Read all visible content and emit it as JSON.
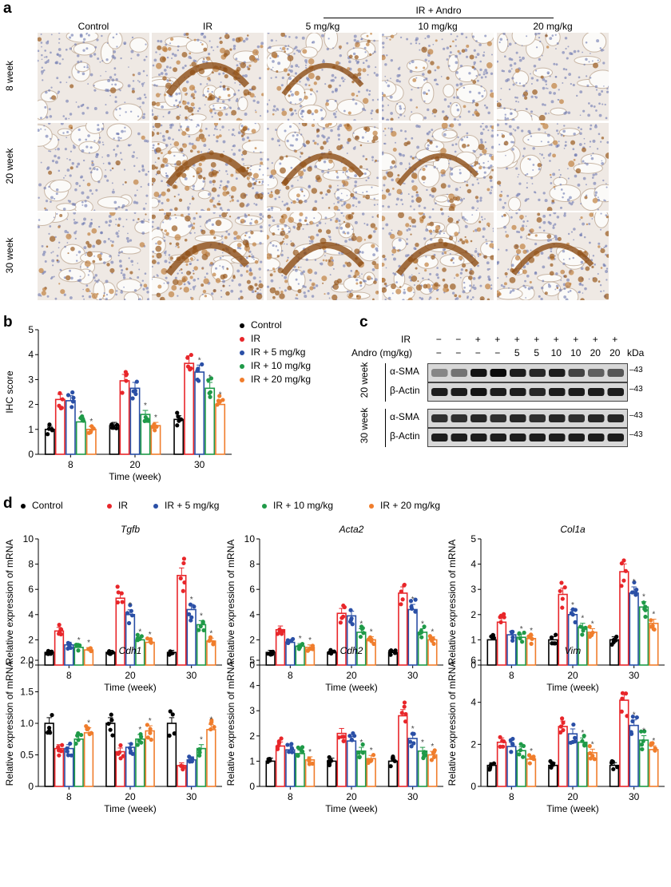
{
  "panel_labels": {
    "a": "a",
    "b": "b",
    "c": "c",
    "d": "d"
  },
  "panel_a": {
    "group_label": "IR + Andro",
    "columns": [
      "Control",
      "IR",
      "5 mg/kg",
      "10 mg/kg",
      "20 mg/kg"
    ],
    "rows": [
      "8 week",
      "20 week",
      "30 week"
    ]
  },
  "legend_b": [
    "Control",
    "IR",
    "IR + 5 mg/kg",
    "IR + 10 mg/kg",
    "IR + 20 mg/kg"
  ],
  "legend_d": [
    "Control",
    "IR",
    "IR + 5 mg/kg",
    "IR + 10 mg/kg",
    "IR + 20 mg/kg"
  ],
  "colors": {
    "Control": "#000000",
    "IR": "#e8262a",
    "IR + 5 mg/kg": "#2a4fa6",
    "IR + 10 mg/kg": "#1f9a48",
    "IR + 20 mg/kg": "#f07d2c"
  },
  "blot": {
    "ir_label": "IR",
    "andro_label": "Andro (mg/kg)",
    "ir_values": [
      "−",
      "−",
      "+",
      "+",
      "+",
      "+",
      "+",
      "+",
      "+",
      "+"
    ],
    "andro_values": [
      "−",
      "−",
      "−",
      "−",
      "5",
      "5",
      "10",
      "10",
      "20",
      "20"
    ],
    "kda_label": "kDa",
    "groups": [
      {
        "week": "20 week",
        "bands": [
          {
            "name": "α-SMA",
            "kda": "43"
          },
          {
            "name": "β-Actin",
            "kda": "43"
          }
        ]
      },
      {
        "week": "30 week",
        "bands": [
          {
            "name": "α-SMA",
            "kda": "43"
          },
          {
            "name": "β-Actin",
            "kda": "43"
          }
        ]
      }
    ]
  },
  "chart_data": [
    {
      "type": "bar",
      "panel": "b",
      "title": "",
      "xlabel": "Time (week)",
      "ylabel": "IHC score",
      "categories": [
        "8",
        "20",
        "30"
      ],
      "ylim": [
        0,
        5
      ],
      "yticks": [
        0,
        1,
        2,
        3,
        4,
        5
      ],
      "tick_labels": [
        "0",
        "1",
        "2",
        "3",
        "4",
        "5"
      ],
      "series": [
        {
          "name": "Control",
          "values": [
            1.0,
            1.15,
            1.4
          ],
          "sig": [
            "",
            "",
            ""
          ]
        },
        {
          "name": "IR",
          "values": [
            2.2,
            2.95,
            3.65
          ],
          "sig": [
            "",
            "",
            ""
          ]
        },
        {
          "name": "IR + 5 mg/kg",
          "values": [
            2.15,
            2.65,
            3.3
          ],
          "sig": [
            "",
            "",
            "*"
          ]
        },
        {
          "name": "IR + 10 mg/kg",
          "values": [
            1.3,
            1.6,
            2.65
          ],
          "sig": [
            "*",
            "*",
            "*"
          ]
        },
        {
          "name": "IR + 20 mg/kg",
          "values": [
            1.0,
            1.15,
            2.0
          ],
          "sig": [
            "*",
            "*",
            "*"
          ]
        }
      ]
    },
    {
      "type": "bar",
      "panel": "d",
      "title": "Tgfb",
      "xlabel": "Time (week)",
      "ylabel": "Relative expression of mRNA",
      "categories": [
        "8",
        "20",
        "30"
      ],
      "ylim": [
        0,
        10
      ],
      "yticks": [
        0,
        2,
        4,
        6,
        8,
        10
      ],
      "tick_labels": [
        "0",
        "2",
        "4",
        "6",
        "8",
        "10"
      ],
      "series": [
        {
          "name": "Control",
          "values": [
            1.0,
            1.0,
            1.0
          ],
          "sig": [
            "",
            "",
            ""
          ]
        },
        {
          "name": "IR",
          "values": [
            2.7,
            5.3,
            7.1
          ],
          "sig": [
            "",
            "",
            ""
          ]
        },
        {
          "name": "IR + 5 mg/kg",
          "values": [
            1.6,
            4.0,
            4.4
          ],
          "sig": [
            "",
            "*",
            "*"
          ]
        },
        {
          "name": "IR + 10 mg/kg",
          "values": [
            1.4,
            2.0,
            3.2
          ],
          "sig": [
            "*",
            "*",
            "*"
          ]
        },
        {
          "name": "IR + 20 mg/kg",
          "values": [
            1.2,
            1.8,
            1.9
          ],
          "sig": [
            "*",
            "*",
            "*"
          ]
        }
      ]
    },
    {
      "type": "bar",
      "panel": "d",
      "title": "Acta2",
      "xlabel": "Time (week)",
      "ylabel": "Relative expression of mRNA",
      "categories": [
        "8",
        "20",
        "30"
      ],
      "ylim": [
        0,
        10
      ],
      "yticks": [
        0,
        2,
        4,
        6,
        8,
        10
      ],
      "tick_labels": [
        "0",
        "2",
        "4",
        "6",
        "8",
        "10"
      ],
      "series": [
        {
          "name": "Control",
          "values": [
            1.0,
            1.0,
            1.0
          ],
          "sig": [
            "",
            "",
            ""
          ]
        },
        {
          "name": "IR",
          "values": [
            2.8,
            4.1,
            5.7
          ],
          "sig": [
            "",
            "",
            ""
          ]
        },
        {
          "name": "IR + 5 mg/kg",
          "values": [
            1.8,
            3.9,
            4.4
          ],
          "sig": [
            "",
            "",
            "*"
          ]
        },
        {
          "name": "IR + 10 mg/kg",
          "values": [
            1.5,
            2.6,
            2.6
          ],
          "sig": [
            "*",
            "*",
            "*"
          ]
        },
        {
          "name": "IR + 20 mg/kg",
          "values": [
            1.4,
            2.0,
            2.0
          ],
          "sig": [
            "*",
            "*",
            "*"
          ]
        }
      ]
    },
    {
      "type": "bar",
      "panel": "d",
      "title": "Col1a",
      "xlabel": "Time (week)",
      "ylabel": "Relative expression of mRNA",
      "categories": [
        "8",
        "20",
        "30"
      ],
      "ylim": [
        0,
        5
      ],
      "yticks": [
        0,
        1,
        2,
        3,
        4,
        5
      ],
      "tick_labels": [
        "0",
        "1",
        "2",
        "3",
        "4",
        "5"
      ],
      "series": [
        {
          "name": "Control",
          "values": [
            1.0,
            1.0,
            1.0
          ],
          "sig": [
            "",
            "",
            ""
          ]
        },
        {
          "name": "IR",
          "values": [
            1.7,
            2.8,
            3.7
          ],
          "sig": [
            "",
            "",
            ""
          ]
        },
        {
          "name": "IR + 5 mg/kg",
          "values": [
            1.2,
            2.0,
            2.85
          ],
          "sig": [
            "",
            "*",
            "*"
          ]
        },
        {
          "name": "IR + 10 mg/kg",
          "values": [
            1.1,
            1.5,
            2.3
          ],
          "sig": [
            "*",
            "*",
            "*"
          ]
        },
        {
          "name": "IR + 20 mg/kg",
          "values": [
            1.05,
            1.3,
            1.65
          ],
          "sig": [
            "*",
            "*",
            "*"
          ]
        }
      ]
    },
    {
      "type": "bar",
      "panel": "d",
      "title": "Cdh1",
      "xlabel": "Time (week)",
      "ylabel": "Relative expression of mRNA",
      "categories": [
        "8",
        "20",
        "30"
      ],
      "ylim": [
        0,
        2.0
      ],
      "yticks": [
        0,
        0.5,
        1.0,
        1.5,
        2.0
      ],
      "tick_labels": [
        "0",
        "0.5",
        "1.0",
        "1.5",
        "2.0"
      ],
      "series": [
        {
          "name": "Control",
          "values": [
            1.0,
            1.0,
            1.0
          ],
          "sig": [
            "",
            "",
            ""
          ]
        },
        {
          "name": "IR",
          "values": [
            0.6,
            0.55,
            0.33
          ],
          "sig": [
            "",
            "",
            ""
          ]
        },
        {
          "name": "IR + 5 mg/kg",
          "values": [
            0.6,
            0.62,
            0.42
          ],
          "sig": [
            "",
            "",
            ""
          ]
        },
        {
          "name": "IR + 10 mg/kg",
          "values": [
            0.75,
            0.75,
            0.6
          ],
          "sig": [
            "",
            "*",
            "*"
          ]
        },
        {
          "name": "IR + 20 mg/kg",
          "values": [
            0.85,
            0.88,
            0.9
          ],
          "sig": [
            "*",
            "*",
            "*"
          ]
        }
      ]
    },
    {
      "type": "bar",
      "panel": "d",
      "title": "Cdh2",
      "xlabel": "Time (week)",
      "ylabel": "Relative expression of mRNA",
      "categories": [
        "8",
        "20",
        "30"
      ],
      "ylim": [
        0,
        5
      ],
      "yticks": [
        0,
        1,
        2,
        3,
        4,
        5
      ],
      "tick_labels": [
        "0",
        "1",
        "2",
        "3",
        "4",
        "5"
      ],
      "series": [
        {
          "name": "Control",
          "values": [
            1.0,
            1.0,
            1.0
          ],
          "sig": [
            "",
            "",
            ""
          ]
        },
        {
          "name": "IR",
          "values": [
            1.6,
            2.1,
            2.8
          ],
          "sig": [
            "",
            "",
            ""
          ]
        },
        {
          "name": "IR + 5 mg/kg",
          "values": [
            1.45,
            1.8,
            1.9
          ],
          "sig": [
            "",
            "",
            "*"
          ]
        },
        {
          "name": "IR + 10 mg/kg",
          "values": [
            1.3,
            1.4,
            1.4
          ],
          "sig": [
            "",
            "*",
            "*"
          ]
        },
        {
          "name": "IR + 20 mg/kg",
          "values": [
            1.05,
            1.1,
            1.25
          ],
          "sig": [
            "*",
            "*",
            "*"
          ]
        }
      ]
    },
    {
      "type": "bar",
      "panel": "d",
      "title": "Vim",
      "xlabel": "Time (week)",
      "ylabel": "Relative expression of mRNA",
      "categories": [
        "8",
        "20",
        "30"
      ],
      "ylim": [
        0,
        6
      ],
      "yticks": [
        0,
        2,
        4,
        6
      ],
      "tick_labels": [
        "0",
        "2",
        "4",
        "6"
      ],
      "series": [
        {
          "name": "Control",
          "values": [
            1.0,
            1.0,
            1.0
          ],
          "sig": [
            "",
            "",
            ""
          ]
        },
        {
          "name": "IR",
          "values": [
            2.1,
            2.85,
            4.1
          ],
          "sig": [
            "",
            "",
            ""
          ]
        },
        {
          "name": "IR + 5 mg/kg",
          "values": [
            1.9,
            2.5,
            2.9
          ],
          "sig": [
            "",
            "",
            "*"
          ]
        },
        {
          "name": "IR + 10 mg/kg",
          "values": [
            1.7,
            2.1,
            2.2
          ],
          "sig": [
            "",
            "*",
            "*"
          ]
        },
        {
          "name": "IR + 20 mg/kg",
          "values": [
            1.3,
            1.6,
            1.75
          ],
          "sig": [
            "*",
            "*",
            "*"
          ]
        }
      ]
    }
  ]
}
